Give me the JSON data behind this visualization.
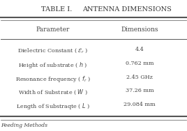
{
  "title": "TABLE I.",
  "subtitle": "ANTENNA DIMENSIONS",
  "col_headers": [
    "Parameter",
    "Dimensions"
  ],
  "rows": [
    [
      "Dielectric Constant ( $\\mathcal{E}_r$ )",
      "4.4"
    ],
    [
      "Height of substrate ( $h$ )",
      "0.762 mm"
    ],
    [
      "Resonance frequency ( $f_r$ )",
      "2.45 GHz"
    ],
    [
      "Width of Substrate ( $W$ )",
      "37.26 mm"
    ],
    [
      "Length of Substraqte ( $L$ )",
      "29.084 mm"
    ]
  ],
  "bg_color": "#ffffff",
  "text_color": "#444444",
  "title_color": "#333333",
  "header_fontsize": 6.5,
  "row_fontsize": 5.8,
  "title_fontsize": 7.0
}
